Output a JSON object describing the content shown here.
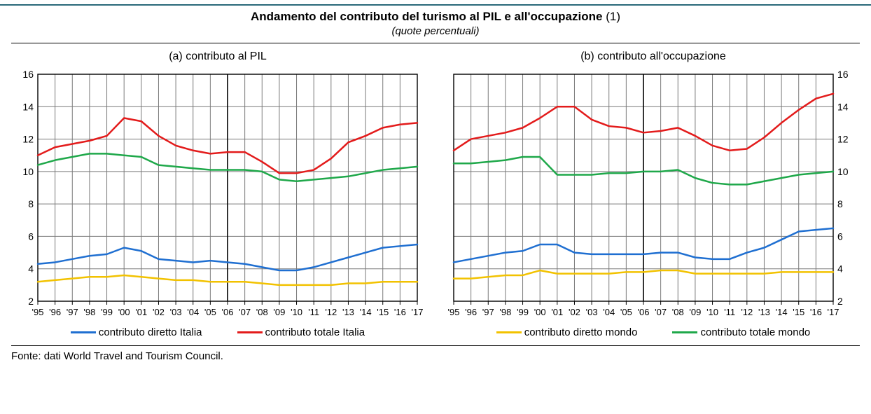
{
  "title": "Andamento del contributo del turismo al PIL e all'occupazione",
  "title_note": "(1)",
  "subtitle": "(quote percentuali)",
  "source": "Fonte: dati World Travel and Tourism Council.",
  "colors": {
    "diretto_italia": "#1f6fd1",
    "totale_italia": "#e31b1b",
    "diretto_mondo": "#f2c200",
    "totale_mondo": "#1fa84a",
    "grid": "#7a7a7a",
    "axis": "#000000",
    "midline": "#000000",
    "background": "#ffffff"
  },
  "line_width": 2.5,
  "axis_fontsize": 14,
  "title_fontsize": 17,
  "panel_title_fontsize": 16,
  "years": [
    "'95",
    "'96",
    "'97",
    "'98",
    "'99",
    "'00",
    "'01",
    "'02",
    "'03",
    "'04",
    "'05",
    "'06",
    "'07",
    "'08",
    "'09",
    "'10",
    "'11",
    "'12",
    "'13",
    "'14",
    "'15",
    "'16",
    "'17"
  ],
  "ylim": [
    2,
    16
  ],
  "ytick_step": 2,
  "panelA": {
    "title": "(a) contributo al PIL",
    "show_left_axis": true,
    "show_right_axis": false,
    "legend": [
      {
        "key": "diretto_italia",
        "label": "contributo diretto Italia"
      },
      {
        "key": "totale_italia",
        "label": "contributo totale Italia"
      }
    ],
    "series": {
      "diretto_italia": [
        4.3,
        4.4,
        4.6,
        4.8,
        4.9,
        5.3,
        5.1,
        4.6,
        4.5,
        4.4,
        4.5,
        4.4,
        4.3,
        4.1,
        3.9,
        3.9,
        4.1,
        4.4,
        4.7,
        5.0,
        5.3,
        5.4,
        5.5
      ],
      "totale_italia": [
        11.0,
        11.5,
        11.7,
        11.9,
        12.2,
        13.3,
        13.1,
        12.2,
        11.6,
        11.3,
        11.1,
        11.2,
        11.2,
        10.6,
        9.9,
        9.9,
        10.1,
        10.8,
        11.8,
        12.2,
        12.7,
        12.9,
        13.0
      ],
      "diretto_mondo": [
        3.2,
        3.3,
        3.4,
        3.5,
        3.5,
        3.6,
        3.5,
        3.4,
        3.3,
        3.3,
        3.2,
        3.2,
        3.2,
        3.1,
        3.0,
        3.0,
        3.0,
        3.0,
        3.1,
        3.1,
        3.2,
        3.2,
        3.2
      ],
      "totale_mondo": [
        10.4,
        10.7,
        10.9,
        11.1,
        11.1,
        11.0,
        10.9,
        10.4,
        10.3,
        10.2,
        10.1,
        10.1,
        10.1,
        10.0,
        9.5,
        9.4,
        9.5,
        9.6,
        9.7,
        9.9,
        10.1,
        10.2,
        10.3
      ]
    }
  },
  "panelB": {
    "title": "(b) contributo all'occupazione",
    "show_left_axis": false,
    "show_right_axis": true,
    "legend": [
      {
        "key": "diretto_mondo",
        "label": "contributo diretto mondo"
      },
      {
        "key": "totale_mondo",
        "label": "contributo totale mondo"
      }
    ],
    "series": {
      "diretto_italia": [
        4.4,
        4.6,
        4.8,
        5.0,
        5.1,
        5.5,
        5.5,
        5.0,
        4.9,
        4.9,
        4.9,
        4.9,
        5.0,
        5.0,
        4.7,
        4.6,
        4.6,
        5.0,
        5.3,
        5.8,
        6.3,
        6.4,
        6.5
      ],
      "totale_italia": [
        11.3,
        12.0,
        12.2,
        12.4,
        12.7,
        13.3,
        14.0,
        14.0,
        13.2,
        12.8,
        12.7,
        12.4,
        12.5,
        12.7,
        12.2,
        11.6,
        11.3,
        11.4,
        12.1,
        13.0,
        13.8,
        14.5,
        14.8
      ],
      "diretto_mondo": [
        3.4,
        3.4,
        3.5,
        3.6,
        3.6,
        3.9,
        3.7,
        3.7,
        3.7,
        3.7,
        3.8,
        3.8,
        3.9,
        3.9,
        3.7,
        3.7,
        3.7,
        3.7,
        3.7,
        3.8,
        3.8,
        3.8,
        3.8
      ],
      "totale_mondo": [
        10.5,
        10.5,
        10.6,
        10.7,
        10.9,
        10.9,
        9.8,
        9.8,
        9.8,
        9.9,
        9.9,
        10.0,
        10.0,
        10.1,
        9.6,
        9.3,
        9.2,
        9.2,
        9.4,
        9.6,
        9.8,
        9.9,
        10.0
      ]
    }
  }
}
